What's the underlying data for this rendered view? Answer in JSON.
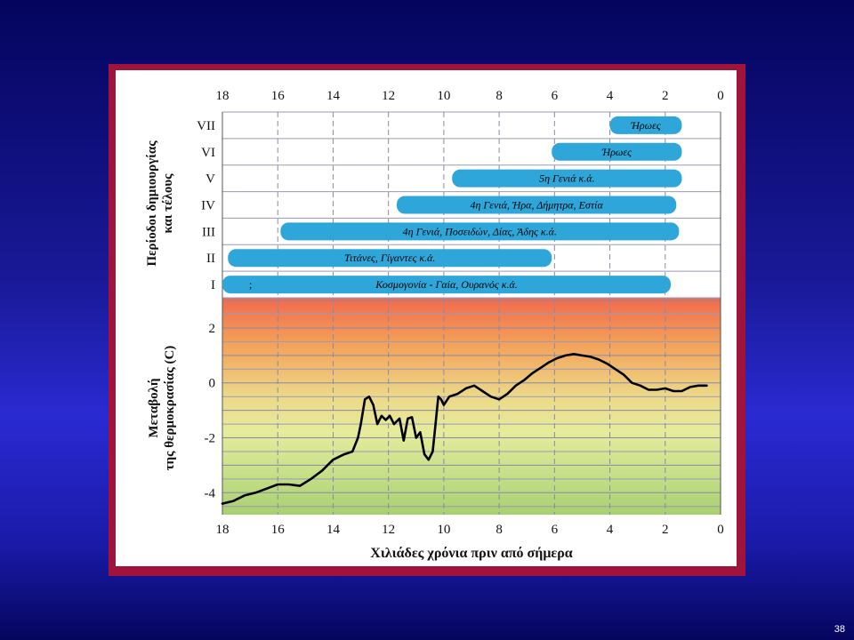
{
  "slide_number": "38",
  "chart_data": [
    {
      "type": "bar",
      "orientation": "horizontal-range",
      "ylabel": "Περίοδοι δημιουργίας και τέλους",
      "x_ticks": [
        "18",
        "16",
        "14",
        "12",
        "10",
        "8",
        "6",
        "4",
        "2",
        "0"
      ],
      "xlim": [
        18,
        0
      ],
      "grid": true,
      "rows": [
        {
          "period": "I",
          "label": "Κοσμογονία - Γαία, Ουρανός κ.ά.",
          "start": 18,
          "end": 1.8,
          "marker": ";"
        },
        {
          "period": "II",
          "label": "Τιτάνες, Γίγαντες κ.ά.",
          "start": 17.8,
          "end": 6.1,
          "marker": ""
        },
        {
          "period": "III",
          "label": "4η Γενιά, Ποσειδών, Δίας, Άδης κ.ά.",
          "start": 15.9,
          "end": 1.5,
          "marker": ""
        },
        {
          "period": "IV",
          "label": "4η Γενιά, Ήρα, Δήμητρα, Εστία",
          "start": 11.7,
          "end": 1.6,
          "marker": ""
        },
        {
          "period": "V",
          "label": "5η Γενιά κ.ά.",
          "start": 9.7,
          "end": 1.4,
          "marker": ""
        },
        {
          "period": "VI",
          "label": "Ήρωες",
          "start": 6.1,
          "end": 1.4,
          "marker": ""
        },
        {
          "period": "VII",
          "label": "Ήρωες",
          "start": 4.0,
          "end": 1.4,
          "marker": ""
        }
      ]
    },
    {
      "type": "line",
      "ylabel": "Μεταβολή της θερμοκρασίας (C)",
      "xlabel": "Χιλιάδες χρόνια πριν από σήμερα",
      "x_ticks": [
        "18",
        "16",
        "14",
        "12",
        "10",
        "8",
        "6",
        "4",
        "2",
        "0"
      ],
      "y_ticks": [
        "2",
        "0",
        "-2",
        "-4"
      ],
      "xlim": [
        18,
        0
      ],
      "ylim": [
        -4.8,
        3.1
      ],
      "grid": true,
      "series": [
        {
          "x": [
            18,
            17.6,
            17.2,
            16.8,
            16.4,
            16,
            15.6,
            15.2,
            14.8,
            14.4,
            14.0,
            13.6,
            13.3,
            13.1,
            13.0,
            12.85,
            12.7,
            12.55,
            12.4,
            12.25,
            12.1,
            11.95,
            11.8,
            11.6,
            11.45,
            11.3,
            11.15,
            11.0,
            10.85,
            10.7,
            10.55,
            10.4,
            10.3,
            10.2,
            10.1,
            10.0,
            9.8,
            9.5,
            9.2,
            8.9,
            8.6,
            8.3,
            8.0,
            7.7,
            7.4,
            7.1,
            6.8,
            6.5,
            6.2,
            5.9,
            5.6,
            5.3,
            5.0,
            4.7,
            4.4,
            4.1,
            3.8,
            3.5,
            3.2,
            2.9,
            2.6,
            2.3,
            2.0,
            1.7,
            1.4,
            1.1,
            0.8,
            0.5
          ],
          "y": [
            -4.4,
            -4.3,
            -4.1,
            -4.0,
            -3.85,
            -3.7,
            -3.7,
            -3.75,
            -3.5,
            -3.2,
            -2.8,
            -2.6,
            -2.5,
            -2.0,
            -1.5,
            -0.6,
            -0.5,
            -0.8,
            -1.5,
            -1.2,
            -1.35,
            -1.2,
            -1.5,
            -1.3,
            -2.1,
            -1.3,
            -1.25,
            -2.0,
            -1.8,
            -2.6,
            -2.8,
            -2.5,
            -1.5,
            -0.5,
            -0.6,
            -0.8,
            -0.5,
            -0.4,
            -0.2,
            -0.1,
            -0.3,
            -0.5,
            -0.6,
            -0.4,
            -0.1,
            0.1,
            0.35,
            0.55,
            0.75,
            0.9,
            1.0,
            1.05,
            1.0,
            0.95,
            0.85,
            0.7,
            0.5,
            0.3,
            0.0,
            -0.1,
            -0.25,
            -0.25,
            -0.2,
            -0.3,
            -0.3,
            -0.15,
            -0.1,
            -0.1
          ]
        }
      ]
    }
  ]
}
